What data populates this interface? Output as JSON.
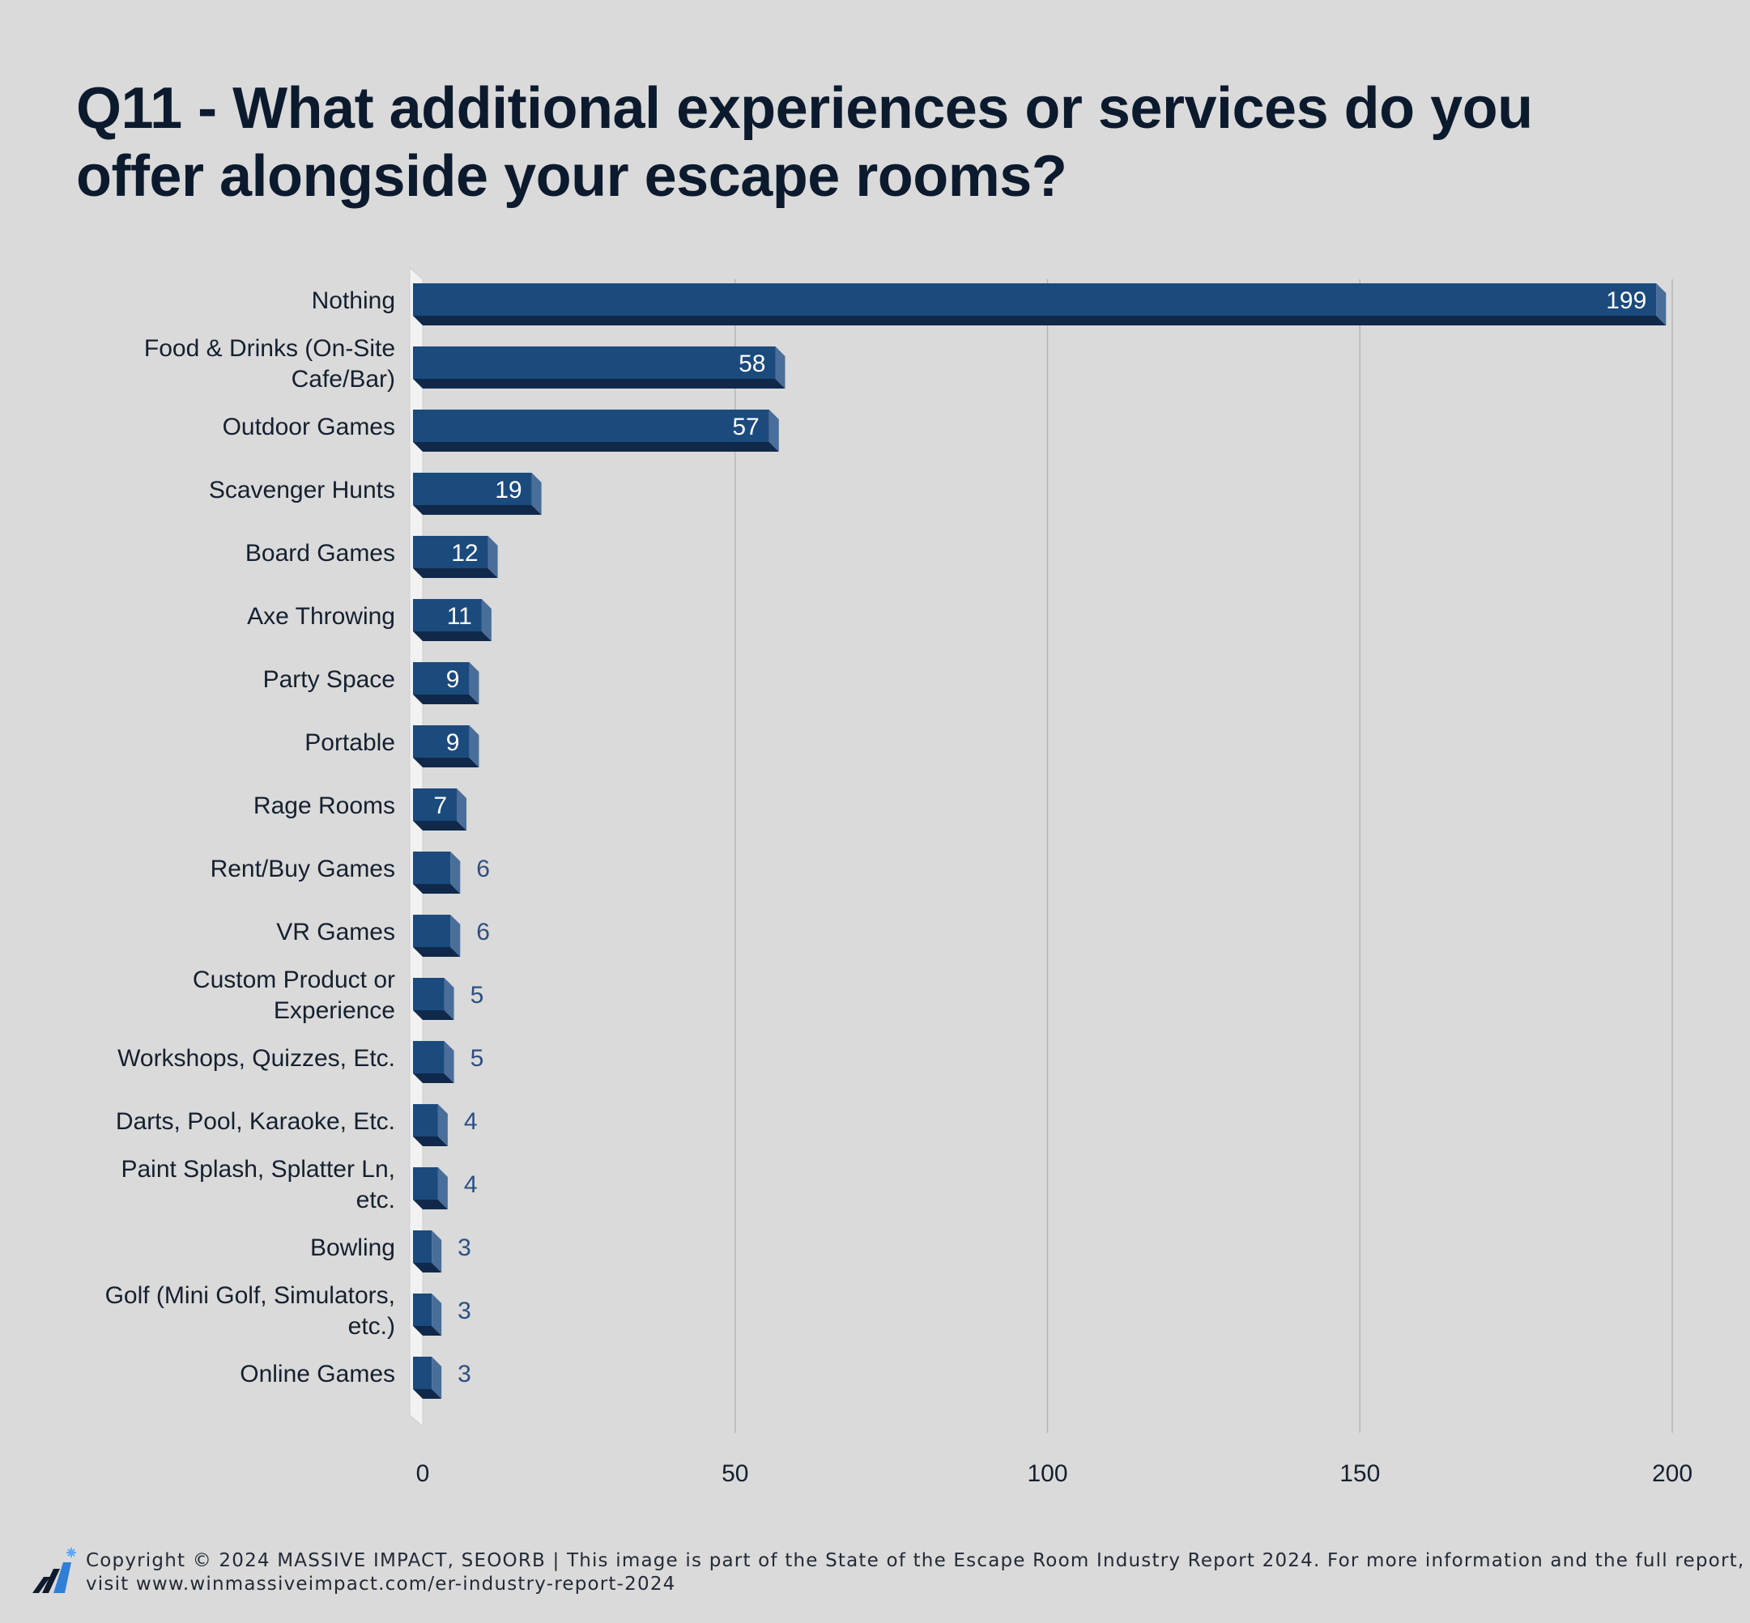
{
  "title": "Q11 - What additional experiences or services do you offer alongside your escape rooms?",
  "footer": {
    "copyright": "Copyright © 2024 MASSIVE IMPACT, SEOORB | This image is part of the State of the Escape Room Industry Report 2024. For more information and the full report, visit www.winmassiveimpact.com/er-industry-report-2024"
  },
  "colors": {
    "bar_front": "#1b4a7d",
    "bar_bottom": "#10294a",
    "bar_side": "#4a6e9a",
    "outside_label": "#2c4f80",
    "grid": "#b5b5b5",
    "background": "#dadada"
  },
  "chart_data": {
    "type": "bar",
    "orientation": "horizontal",
    "title": "Q11 - What additional experiences or services do you offer alongside your escape rooms?",
    "xlabel": "",
    "ylabel": "",
    "xlim": [
      0,
      200
    ],
    "xticks": [
      0,
      50,
      100,
      150,
      200
    ],
    "grid": true,
    "categories": [
      "Nothing",
      "Food & Drinks (On-Site Cafe/Bar)",
      "Outdoor Games",
      "Scavenger Hunts",
      "Board Games",
      "Axe Throwing",
      "Party Space",
      "Portable",
      "Rage Rooms",
      "Rent/Buy Games",
      "VR Games",
      "Custom Product or Experience",
      "Workshops, Quizzes, Etc.",
      "Darts, Pool, Karaoke, Etc.",
      "Paint Splash, Splatter Ln, etc.",
      "Bowling",
      "Golf (Mini Golf, Simulators, etc.)",
      "Online Games"
    ],
    "label_lines": [
      [
        "Nothing"
      ],
      [
        "Food & Drinks (On-Site",
        "Cafe/Bar)"
      ],
      [
        "Outdoor Games"
      ],
      [
        "Scavenger Hunts"
      ],
      [
        "Board Games"
      ],
      [
        "Axe Throwing"
      ],
      [
        "Party Space"
      ],
      [
        "Portable"
      ],
      [
        "Rage Rooms"
      ],
      [
        "Rent/Buy Games"
      ],
      [
        "VR Games"
      ],
      [
        "Custom Product or",
        "Experience"
      ],
      [
        "Workshops, Quizzes, Etc."
      ],
      [
        "Darts, Pool, Karaoke, Etc."
      ],
      [
        "Paint Splash, Splatter Ln,",
        "etc."
      ],
      [
        "Bowling"
      ],
      [
        "Golf (Mini Golf, Simulators,",
        "etc.)"
      ],
      [
        "Online Games"
      ]
    ],
    "values": [
      199,
      58,
      57,
      19,
      12,
      11,
      9,
      9,
      7,
      6,
      6,
      5,
      5,
      4,
      4,
      3,
      3,
      3
    ]
  }
}
